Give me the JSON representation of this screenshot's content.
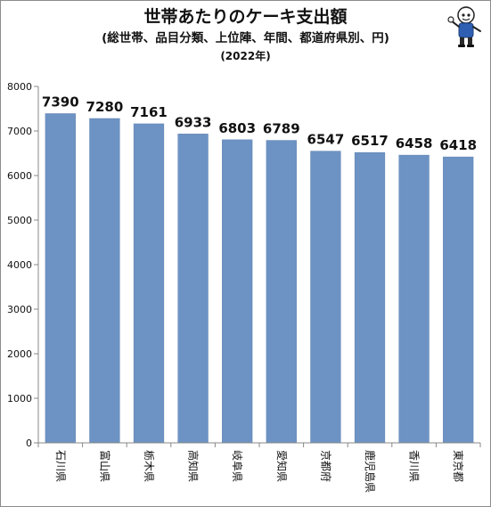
{
  "chart_data": {
    "type": "bar",
    "title": "世帯あたりのケーキ支出額",
    "subtitle": "(総世帯、品目分類、上位陣、年間、都道府県別、円)",
    "year_label": "(2022年)",
    "xlabel": "",
    "ylabel": "",
    "categories": [
      "石川県",
      "富山県",
      "栃木県",
      "高知県",
      "岐阜県",
      "愛知県",
      "京都府",
      "鹿児島県",
      "香川県",
      "東京都"
    ],
    "values": [
      7390,
      7280,
      7161,
      6933,
      6803,
      6789,
      6547,
      6517,
      6458,
      6418
    ],
    "value_labels": [
      "7390",
      "7280",
      "7161",
      "6933",
      "6803",
      "6789",
      "6547",
      "6517",
      "6458",
      "6418"
    ],
    "ylim": [
      0,
      8000
    ],
    "yticks": [
      0,
      1000,
      2000,
      3000,
      4000,
      5000,
      6000,
      7000,
      8000
    ],
    "ytick_labels": [
      "0",
      "1000",
      "2000",
      "3000",
      "4000",
      "5000",
      "6000",
      "7000",
      "8000"
    ],
    "grid": false,
    "legend": "none",
    "bar_color": "#6d93c4",
    "bar_edge_color": "#5b7fb0"
  },
  "mascot": {
    "icon": "mascot-character-icon"
  }
}
